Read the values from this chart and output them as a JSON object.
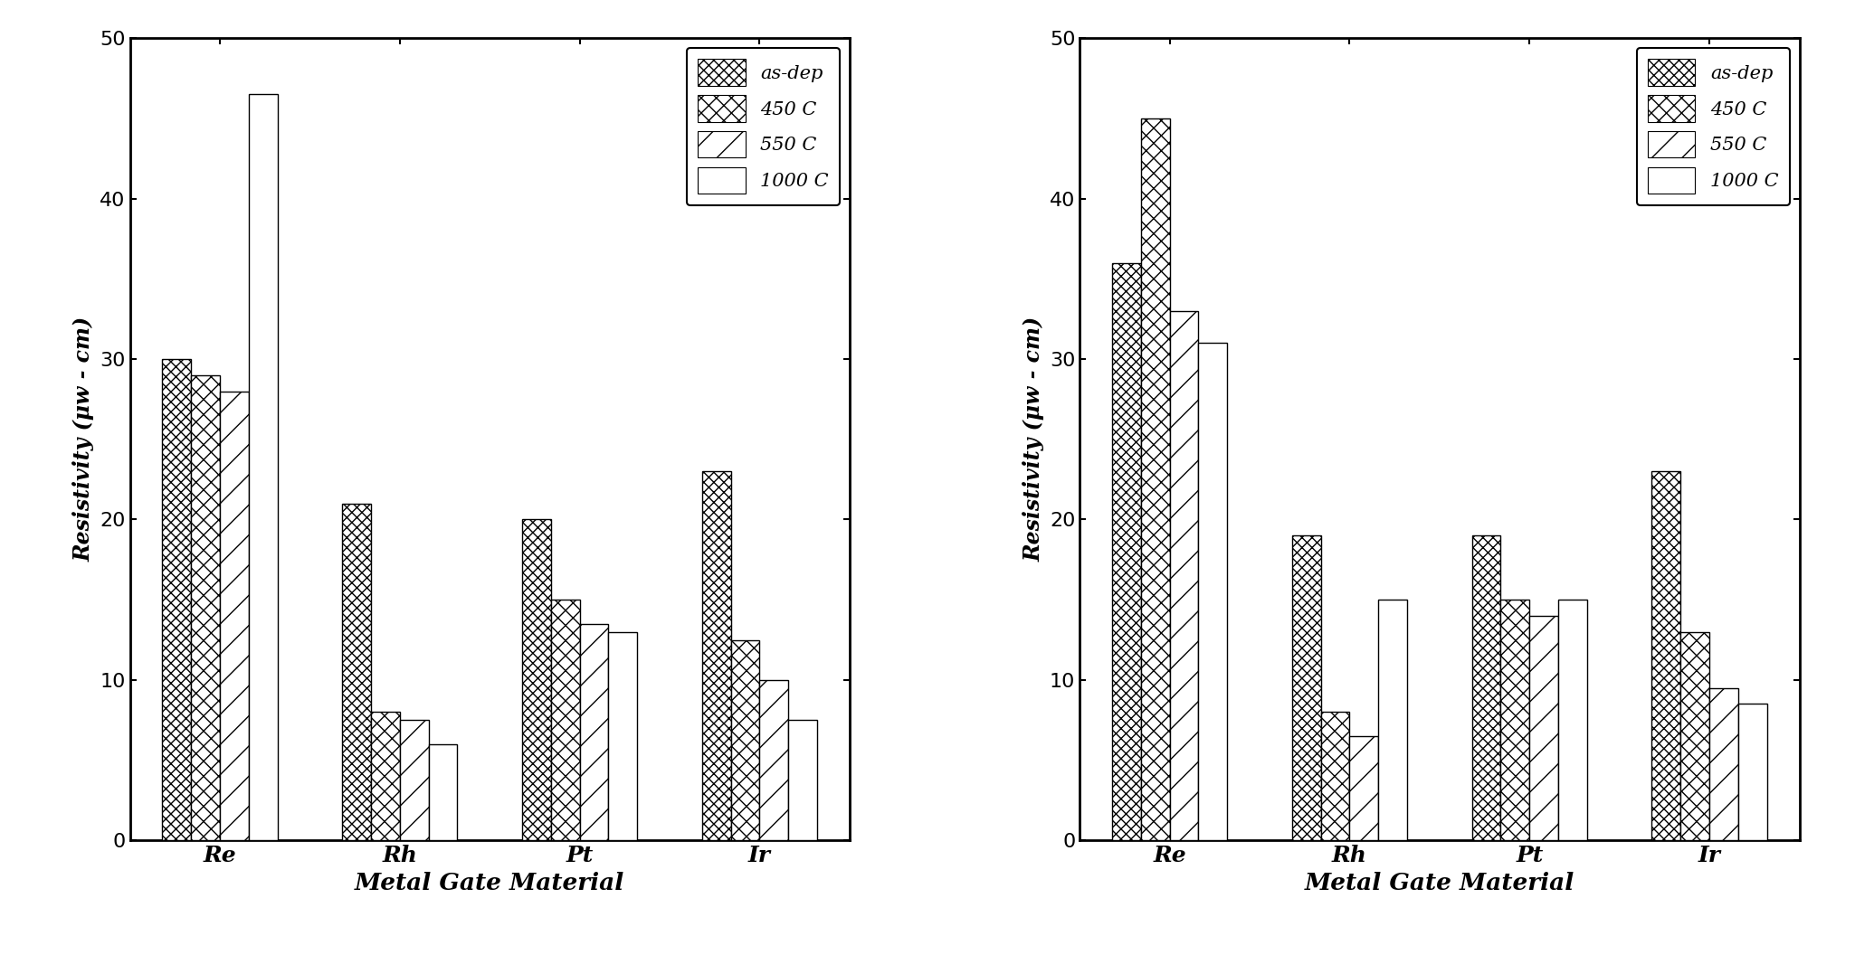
{
  "categories": [
    "Re",
    "Rh",
    "Pt",
    "Ir"
  ],
  "legend_labels": [
    "as-dep",
    "450 C",
    "550 C",
    "1000 C"
  ],
  "left_chart": {
    "Re": [
      30.0,
      29.0,
      28.0,
      46.5
    ],
    "Rh": [
      21.0,
      8.0,
      7.5,
      6.0
    ],
    "Pt": [
      20.0,
      15.0,
      13.5,
      13.0
    ],
    "Ir": [
      23.0,
      12.5,
      10.0,
      7.5
    ]
  },
  "right_chart": {
    "Re": [
      36.0,
      45.0,
      33.0,
      31.0
    ],
    "Rh": [
      19.0,
      8.0,
      6.5,
      15.0
    ],
    "Pt": [
      19.0,
      15.0,
      14.0,
      15.0
    ],
    "Ir": [
      23.0,
      13.0,
      9.5,
      8.5
    ]
  },
  "ylim": [
    0,
    50
  ],
  "yticks": [
    0,
    10,
    20,
    30,
    40,
    50
  ],
  "ylabel": "Resistivity (μw - cm)",
  "xlabel": "Metal Gate Material",
  "bar_width": 0.16,
  "background_color": "#ffffff",
  "bar_edge_color": "#000000"
}
